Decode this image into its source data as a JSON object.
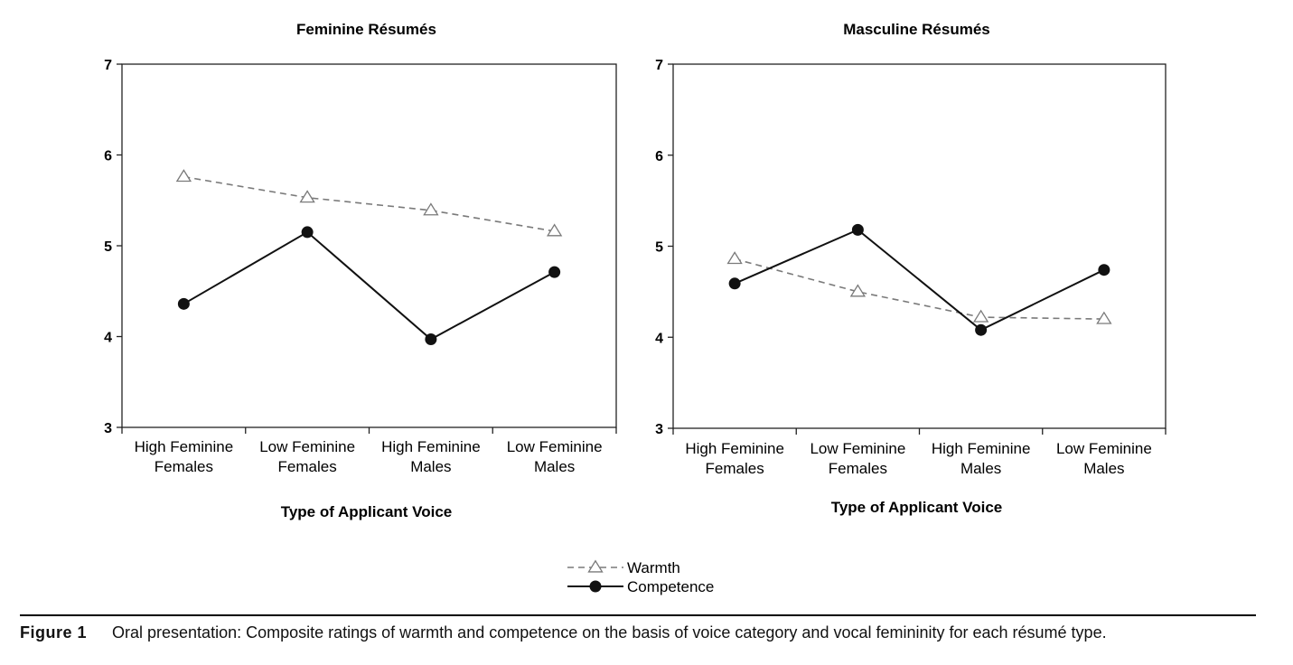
{
  "chart_data": [
    {
      "type": "line",
      "title": "Feminine Résumés",
      "xlabel": "Type of Applicant Voice",
      "ylabel": "",
      "ylim": [
        3,
        7
      ],
      "yticks": [
        "3",
        "4",
        "5",
        "6",
        "7"
      ],
      "categories": [
        [
          "High Feminine",
          "Females"
        ],
        [
          "Low Feminine",
          "Females"
        ],
        [
          "High Feminine",
          "Males"
        ],
        [
          "Low Feminine",
          "Males"
        ]
      ],
      "series": [
        {
          "name": "Warmth",
          "values": [
            5.76,
            5.53,
            5.39,
            5.16
          ]
        },
        {
          "name": "Competence",
          "values": [
            4.36,
            5.15,
            3.97,
            4.71
          ]
        }
      ]
    },
    {
      "type": "line",
      "title": "Masculine Résumés",
      "xlabel": "Type of Applicant Voice",
      "ylabel": "",
      "ylim": [
        3,
        7
      ],
      "yticks": [
        "3",
        "4",
        "5",
        "6",
        "7"
      ],
      "categories": [
        [
          "High Feminine",
          "Females"
        ],
        [
          "Low Feminine",
          "Females"
        ],
        [
          "High Feminine",
          "Males"
        ],
        [
          "Low Feminine",
          "Males"
        ]
      ],
      "series": [
        {
          "name": "Warmth",
          "values": [
            4.86,
            4.5,
            4.22,
            4.2
          ]
        },
        {
          "name": "Competence",
          "values": [
            4.59,
            5.18,
            4.08,
            4.74
          ]
        }
      ]
    }
  ],
  "legend": {
    "warmth": "Warmth",
    "competence": "Competence",
    "placement": "bottom-center"
  },
  "colors": {
    "warmth": "#7a7a7a",
    "competence": "#111111",
    "axis": "#222222"
  },
  "caption": {
    "label": "Figure 1",
    "text": "Oral presentation: Composite ratings of warmth and competence on the basis of voice category and vocal femininity for each résumé type."
  }
}
